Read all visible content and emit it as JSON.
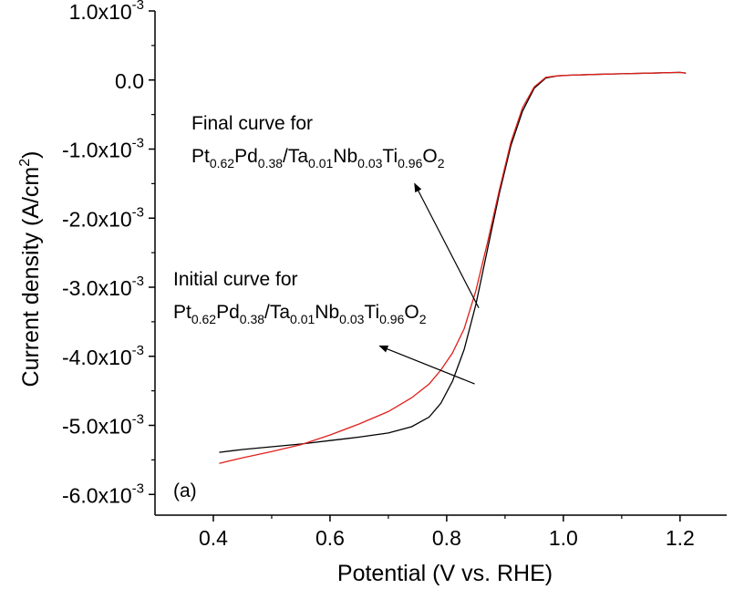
{
  "chart_data": {
    "type": "line",
    "xlabel": "Potential (V vs. RHE)",
    "ylabel_main": "Current density (A/cm",
    "ylabel_sup": "2",
    "ylabel_end": ")",
    "xlim": [
      0.3,
      1.28
    ],
    "ylim": [
      -0.0063,
      0.001
    ],
    "x_ticks": [
      {
        "value": 0.4,
        "label": "0.4"
      },
      {
        "value": 0.6,
        "label": "0.6"
      },
      {
        "value": 0.8,
        "label": "0.8"
      },
      {
        "value": 1.0,
        "label": "1.0"
      },
      {
        "value": 1.2,
        "label": "1.2"
      }
    ],
    "y_ticks": [
      {
        "value": 0.001,
        "mant": "1.0x10",
        "exp": "-3"
      },
      {
        "value": 0.0,
        "mant": "0.0",
        "exp": ""
      },
      {
        "value": -0.001,
        "mant": "-1.0x10",
        "exp": "-3"
      },
      {
        "value": -0.002,
        "mant": "-2.0x10",
        "exp": "-3"
      },
      {
        "value": -0.003,
        "mant": "-3.0x10",
        "exp": "-3"
      },
      {
        "value": -0.004,
        "mant": "-4.0x10",
        "exp": "-3"
      },
      {
        "value": -0.005,
        "mant": "-5.0x10",
        "exp": "-3"
      },
      {
        "value": -0.006,
        "mant": "-6.0x10",
        "exp": "-3"
      }
    ],
    "grid": false,
    "series": [
      {
        "color": "#000000",
        "x": [
          0.41,
          0.45,
          0.5,
          0.55,
          0.6,
          0.65,
          0.7,
          0.74,
          0.77,
          0.79,
          0.81,
          0.83,
          0.85,
          0.87,
          0.89,
          0.91,
          0.93,
          0.95,
          0.97,
          0.99,
          1.01,
          1.05,
          1.1,
          1.15,
          1.2,
          1.21
        ],
        "y": [
          -0.00539,
          -0.00535,
          -0.00531,
          -0.00527,
          -0.00522,
          -0.00517,
          -0.00511,
          -0.00502,
          -0.00488,
          -0.00468,
          -0.00436,
          -0.0039,
          -0.00325,
          -0.00245,
          -0.00165,
          -0.00095,
          -0.00045,
          -0.00012,
          3e-05,
          6e-05,
          7e-05,
          8e-05,
          9e-05,
          0.0001,
          0.00011,
          0.0001
        ]
      },
      {
        "color": "#e0201b",
        "x": [
          0.41,
          0.45,
          0.5,
          0.55,
          0.6,
          0.65,
          0.7,
          0.74,
          0.77,
          0.79,
          0.81,
          0.83,
          0.85,
          0.87,
          0.89,
          0.91,
          0.93,
          0.95,
          0.97,
          0.99,
          1.01,
          1.05,
          1.1,
          1.15,
          1.2,
          1.21
        ],
        "y": [
          -0.00555,
          -0.00547,
          -0.00538,
          -0.00528,
          -0.00514,
          -0.00498,
          -0.0048,
          -0.0046,
          -0.0044,
          -0.0042,
          -0.00395,
          -0.0036,
          -0.00305,
          -0.00235,
          -0.0016,
          -0.0009,
          -0.0004,
          -0.0001,
          4e-05,
          6e-05,
          7e-05,
          8e-05,
          9e-05,
          0.0001,
          0.00011,
          0.0001
        ]
      }
    ],
    "annotations": [
      {
        "line1": "Final curve for",
        "parts": [
          {
            "t": "Pt",
            "s": false
          },
          {
            "t": "0.62",
            "s": true
          },
          {
            "t": "Pd",
            "s": false
          },
          {
            "t": "0.38",
            "s": true
          },
          {
            "t": "/Ta",
            "s": false
          },
          {
            "t": "0.01",
            "s": true
          },
          {
            "t": "Nb",
            "s": false
          },
          {
            "t": "0.03",
            "s": true
          },
          {
            "t": "Ti",
            "s": false
          },
          {
            "t": "0.96",
            "s": true
          },
          {
            "t": "O",
            "s": false
          },
          {
            "t": "2",
            "s": true
          }
        ],
        "arrow_from": [
          0.855,
          -0.0033
        ],
        "arrow_to": [
          0.745,
          -0.0015
        ]
      },
      {
        "line1": "Initial curve for",
        "parts": [
          {
            "t": "Pt",
            "s": false
          },
          {
            "t": "0.62",
            "s": true
          },
          {
            "t": "Pd",
            "s": false
          },
          {
            "t": "0.38",
            "s": true
          },
          {
            "t": "/Ta",
            "s": false
          },
          {
            "t": "0.01",
            "s": true
          },
          {
            "t": "Nb",
            "s": false
          },
          {
            "t": "0.03",
            "s": true
          },
          {
            "t": "Ti",
            "s": false
          },
          {
            "t": "0.96",
            "s": true
          },
          {
            "t": "O",
            "s": false
          },
          {
            "t": "2",
            "s": true
          }
        ],
        "arrow_from": [
          0.848,
          -0.0044
        ],
        "arrow_to": [
          0.685,
          -0.00385
        ]
      }
    ],
    "panel_label": "(a)"
  }
}
